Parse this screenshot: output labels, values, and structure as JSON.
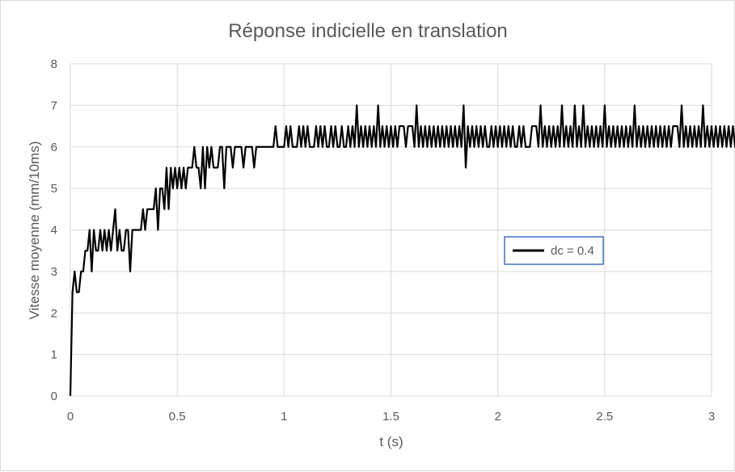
{
  "chart_data": {
    "type": "line",
    "title": "Réponse indicielle en translation",
    "xlabel": "t (s)",
    "ylabel": "Vitesse moyenne (mm/10ms)",
    "xlim": [
      0,
      3
    ],
    "ylim": [
      0,
      8
    ],
    "x_ticks": [
      "0",
      "0.5",
      "1",
      "1.5",
      "2",
      "2.5",
      "3"
    ],
    "y_ticks": [
      "0",
      "1",
      "2",
      "3",
      "4",
      "5",
      "6",
      "7",
      "8"
    ],
    "grid": true,
    "legend_position": "right",
    "colors": {
      "series": "#000000",
      "grid": "#d9d9d9",
      "legend_border": "#4472c4",
      "text": "#595959"
    },
    "series": [
      {
        "name": "dc = 0.4",
        "x_step": 0.01,
        "x_start": 0,
        "values": [
          0,
          2.5,
          3,
          2.5,
          2.5,
          3,
          3,
          3.5,
          3.5,
          4,
          3,
          4,
          3.5,
          3.5,
          4,
          3.5,
          4,
          3.5,
          4,
          3.5,
          4,
          4.5,
          3.5,
          4,
          3.5,
          3.5,
          4,
          4,
          3,
          4,
          4,
          4,
          4,
          4,
          4.5,
          4,
          4.5,
          4.5,
          4.5,
          4.5,
          5,
          4,
          5,
          5,
          4.5,
          5.5,
          4.5,
          5.5,
          5,
          5.5,
          5,
          5.5,
          5,
          5.5,
          5,
          5.5,
          5.5,
          5.5,
          6,
          5.5,
          5.5,
          5,
          6,
          5,
          6,
          5.5,
          6,
          5.5,
          5.5,
          5.5,
          6,
          6,
          5,
          6,
          6,
          6,
          5.5,
          6,
          6,
          6,
          6,
          5.5,
          6,
          6,
          6,
          6,
          5.5,
          6,
          6,
          6,
          6,
          6,
          6,
          6,
          6,
          6,
          6.5,
          6,
          6,
          6,
          6,
          6.5,
          6,
          6.5,
          6,
          6,
          6,
          6.5,
          6,
          6.5,
          6,
          6.5,
          6,
          6,
          6,
          6.5,
          6,
          6.5,
          6,
          6.5,
          6,
          6,
          6.5,
          6,
          6.5,
          6,
          6,
          6.5,
          6,
          6,
          6.5,
          6,
          6.5,
          6,
          7,
          6,
          6.5,
          6,
          6.5,
          6,
          6.5,
          6,
          6.5,
          6,
          7,
          6,
          6.5,
          6,
          6.5,
          6,
          6.5,
          6,
          6.5,
          6,
          6.5,
          6.5,
          6.5,
          6,
          6.5,
          6.5,
          6.5,
          6,
          7,
          6,
          6.5,
          6,
          6.5,
          6,
          6.5,
          6,
          6.5,
          6,
          6.5,
          6,
          6.5,
          6,
          6.5,
          6,
          6.5,
          6,
          6.5,
          6,
          6.5,
          6,
          7,
          5.5,
          6.5,
          6,
          6.5,
          6,
          6.5,
          6,
          6.5,
          6,
          6.5,
          6,
          6,
          6.5,
          6,
          6.5,
          6,
          6.5,
          6,
          6.5,
          6,
          6.5,
          6,
          6.5,
          6,
          6,
          6.5,
          6,
          6.5,
          6,
          6,
          6,
          6.5,
          6.5,
          6.5,
          6,
          7,
          6,
          6.5,
          6,
          6.5,
          6,
          6.5,
          6,
          6.5,
          6,
          7,
          6,
          6.5,
          6,
          6.5,
          6,
          7,
          6,
          6.5,
          6,
          7,
          6,
          6.5,
          6,
          6.5,
          6,
          6.5,
          6,
          6.5,
          6,
          7,
          6,
          6.5,
          6,
          6.5,
          6,
          6.5,
          6,
          6.5,
          6,
          6.5,
          6,
          6.5,
          6,
          7,
          6,
          6.5,
          6,
          6.5,
          6,
          6.5,
          6,
          6.5,
          6,
          6.5,
          6,
          6.5,
          6,
          6.5,
          6,
          6.5,
          6,
          6.5,
          6.5,
          6.5,
          6,
          7,
          6,
          6.5,
          6,
          6.5,
          6,
          6.5,
          6,
          6.5,
          6,
          7,
          6,
          6.5,
          6,
          6.5,
          6,
          6.5,
          6,
          6.5,
          6,
          6.5,
          6,
          6.5,
          6,
          6.5,
          6,
          6.5,
          6,
          6.5,
          6,
          6.5,
          6
        ]
      }
    ]
  }
}
